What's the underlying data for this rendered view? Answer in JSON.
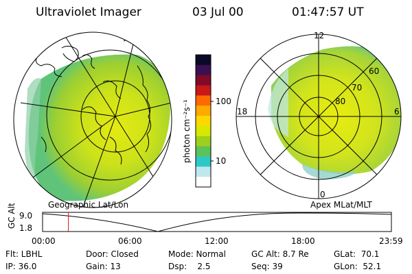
{
  "header": {
    "instrument": "Ultraviolet Imager",
    "date": "03 Jul 00",
    "time": "01:47:57 UT"
  },
  "colorbar": {
    "label": "photon cm⁻²s⁻¹",
    "ticks": [
      "100",
      "10"
    ],
    "colors": [
      "#0a0a28",
      "#3a1050",
      "#800a28",
      "#c81818",
      "#ff6a00",
      "#ffaa00",
      "#ffd800",
      "#d8e800",
      "#9ccf1e",
      "#5cc25a",
      "#2ec8c8",
      "#bfe8ec",
      "#ffffff"
    ]
  },
  "left_map": {
    "caption": "Geographic Lat/Lon"
  },
  "right_map": {
    "caption": "Apex MLat/MLT",
    "mlt_labels": {
      "top": "12",
      "left": "18",
      "right": "6",
      "bottom": "0"
    },
    "lat_labels": [
      "60",
      "70",
      "80"
    ]
  },
  "altitude_plot": {
    "axis_title": "GC Alt",
    "ymax_label": "9.0",
    "ymin_label": "1.8",
    "x_ticks": [
      "00:00",
      "06:00",
      "12:00",
      "18:00",
      "23:59"
    ],
    "current_time_fraction": 0.074
  },
  "status": {
    "row1": [
      {
        "text": "Flt: LBHL"
      },
      {
        "text": "Door: Closed"
      },
      {
        "text": "Mode: Normal"
      },
      {
        "text": "GC Alt: 8.7 Re"
      },
      {
        "text": "GLat:  70.1"
      }
    ],
    "row2": [
      {
        "text": "IP: 36.0"
      },
      {
        "text": "Gain: 13"
      },
      {
        "text": "Dsp:    2.5"
      },
      {
        "text": "Seq: 39"
      },
      {
        "text": "GLon:  52.1"
      }
    ]
  }
}
